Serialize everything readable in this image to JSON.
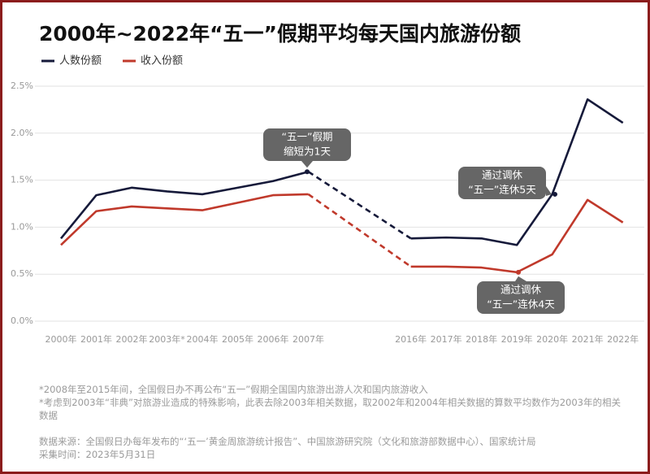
{
  "chart_data": {
    "type": "line",
    "title": "2000年~2022年“五一”假期平均每天国内旅游份额",
    "categories": [
      "2000年",
      "2001年",
      "2002年",
      "2003年*",
      "2004年",
      "2005年",
      "2006年",
      "2007年",
      "2016年",
      "2017年",
      "2018年",
      "2019年",
      "2020年",
      "2021年",
      "2022年"
    ],
    "series": [
      {
        "name": "人数份额",
        "color": "#161a3a",
        "values": [
          0.88,
          1.34,
          1.42,
          1.38,
          1.35,
          1.42,
          1.49,
          1.59,
          0.88,
          0.89,
          0.88,
          0.81,
          1.35,
          2.36,
          2.11
        ]
      },
      {
        "name": "收入份额",
        "color": "#c0392b",
        "values": [
          0.81,
          1.17,
          1.22,
          1.2,
          1.18,
          1.26,
          1.34,
          1.35,
          0.58,
          0.58,
          0.57,
          0.52,
          0.71,
          1.29,
          1.05
        ]
      }
    ],
    "ylim": [
      0,
      2.5
    ],
    "yticks": [
      {
        "value": 0,
        "label": "0.0%"
      },
      {
        "value": 0.5,
        "label": "0.5%"
      },
      {
        "value": 1,
        "label": "1.0%"
      },
      {
        "value": 1.5,
        "label": "1.5%"
      },
      {
        "value": 2,
        "label": "2.0%"
      },
      {
        "value": 2.5,
        "label": "2.5%"
      }
    ],
    "grid": true,
    "annotations": [
      [
        "“五一”假期",
        "缩短为1天"
      ],
      [
        "通过调休",
        "“五一”连休5天"
      ],
      [
        "通过调休",
        "“五一”连休4天"
      ]
    ],
    "notes": [
      "*2008年至2015年间，全国假日办不再公布“五一”假期全国国内旅游出游人次和国内旅游收入",
      "*考虑到2003年“非典”对旅游业造成的特殊影响，此表去除2003年相关数据，取2002年和2004年相关数据的算数平均数作为2003年的相关数据"
    ],
    "source": [
      "数据来源：全国假日办每年发布的“‘五一’黄金周旅游统计报告”、中国旅游研究院（文化和旅游部数据中心）、国家统计局",
      "采集时间：2023年5月31日"
    ]
  }
}
